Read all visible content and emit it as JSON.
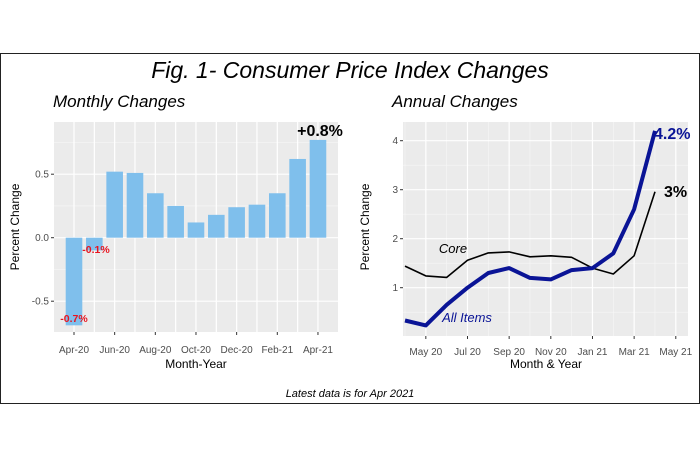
{
  "title": "Fig. 1- Consumer Price Index Changes",
  "footnote": "Latest data is for Apr 2021",
  "chart_data": [
    {
      "type": "bar",
      "title": "Monthly Changes",
      "xlabel": "Month-Year",
      "ylabel": "Percent Change",
      "categories": [
        "Apr-20",
        "May-20",
        "Jun-20",
        "Jul-20",
        "Aug-20",
        "Sep-20",
        "Oct-20",
        "Nov-20",
        "Dec-20",
        "Jan-21",
        "Feb-21",
        "Mar-21",
        "Apr-21"
      ],
      "values": [
        -0.69,
        -0.1,
        0.52,
        0.51,
        0.35,
        0.25,
        0.12,
        0.18,
        0.24,
        0.26,
        0.35,
        0.62,
        0.77
      ],
      "tick_labels": [
        "Apr-20",
        "Jun-20",
        "Aug-20",
        "Oct-20",
        "Dec-20",
        "Feb-21",
        "Apr-21"
      ],
      "yticks": [
        "-0.5",
        "0.0",
        "0.5"
      ],
      "ylim": [
        -0.73,
        0.83
      ],
      "bar_color": "#7fbfec",
      "annotations": [
        {
          "text": "-0.7%",
          "category": "Apr-20",
          "color": "#e8141e"
        },
        {
          "text": "-0.1%",
          "category": "May-20",
          "color": "#e8141e"
        },
        {
          "text": "+0.8%",
          "category": "Apr-21",
          "color": "#000000"
        }
      ],
      "grid": true
    },
    {
      "type": "line",
      "title": "Annual Changes",
      "xlabel": "Month & Year",
      "ylabel": "Percent Change",
      "x": [
        "Apr 20",
        "May 20",
        "Jun 20",
        "Jul 20",
        "Aug 20",
        "Sep 20",
        "Oct 20",
        "Nov 20",
        "Dec 20",
        "Jan 21",
        "Feb 21",
        "Mar 21",
        "Apr 21"
      ],
      "series": [
        {
          "name": "All Items",
          "color": "#0a1496",
          "values": [
            0.33,
            0.23,
            0.65,
            1.0,
            1.3,
            1.4,
            1.2,
            1.17,
            1.36,
            1.4,
            1.7,
            2.6,
            4.2
          ]
        },
        {
          "name": "Core",
          "color": "#000000",
          "values": [
            1.44,
            1.24,
            1.21,
            1.56,
            1.71,
            1.73,
            1.63,
            1.65,
            1.62,
            1.4,
            1.28,
            1.65,
            2.96
          ]
        }
      ],
      "tick_labels": [
        "May 20",
        "Jul 20",
        "Sep 20",
        "Nov 20",
        "Jan 21",
        "Mar 21",
        "May 21"
      ],
      "yticks": [
        "1",
        "2",
        "3",
        "4"
      ],
      "ylim": [
        0.05,
        4.4
      ],
      "annotations": [
        {
          "text": "4.2%",
          "series": "All Items",
          "color": "#0a1496"
        },
        {
          "text": "3%",
          "series": "Core",
          "color": "#000000"
        }
      ],
      "grid": true
    }
  ]
}
